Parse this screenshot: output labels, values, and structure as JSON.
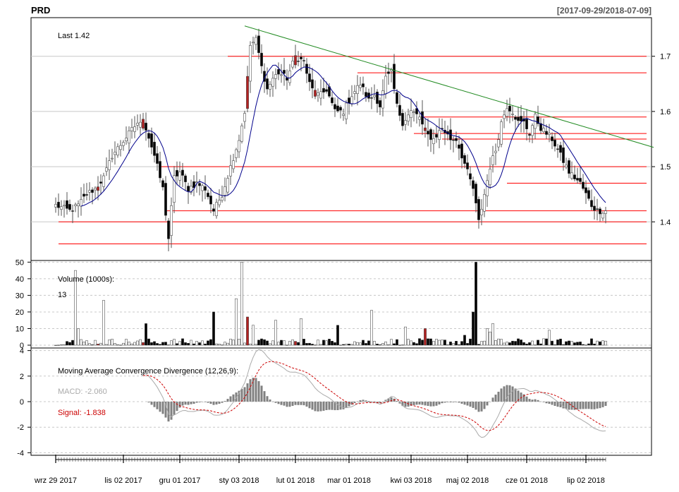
{
  "header": {
    "symbol": "PRD",
    "date_range": "[2017-09-29/2018-07-09]"
  },
  "price_panel": {
    "last_label": "Last 1.42",
    "y_ticks": [
      "1.7",
      "1.6",
      "1.5",
      "1.4"
    ],
    "y_tick_values": [
      1.7,
      1.6,
      1.5,
      1.4
    ],
    "ylim": [
      1.33,
      1.77
    ],
    "ma_color": "#00008b",
    "up_color": "#ffffff",
    "down_color": "#000000",
    "highlight_color": "#b22222",
    "support_color": "#ff0000",
    "trend_color": "#228b22"
  },
  "volume_panel": {
    "title": "Volume (1000s):",
    "last_value": "13",
    "y_ticks": [
      "50",
      "40",
      "30",
      "20",
      "10",
      "0"
    ],
    "y_tick_values": [
      50,
      40,
      30,
      20,
      10,
      0
    ],
    "ylim": [
      0,
      51
    ]
  },
  "macd_panel": {
    "title": "Moving Average Convergence Divergence (12,26,9):",
    "macd_label": "MACD: -2.060",
    "signal_label": "Signal: -1.838",
    "y_ticks": [
      "4",
      "2",
      "0",
      "-2",
      "-4"
    ],
    "y_tick_values": [
      4,
      2,
      0,
      -2,
      -4
    ],
    "ylim": [
      -4.2,
      4.2
    ],
    "macd_color": "#aaaaaa",
    "signal_color": "#cc0000",
    "hist_color": "#808080"
  },
  "x_axis": {
    "labels": [
      "wrz 29 2017",
      "lis 02 2017",
      "gru 01 2017",
      "sty 03 2018",
      "lut 01 2018",
      "mar 01 2018",
      "kwi 03 2018",
      "maj 02 2018",
      "cze 01 2018",
      "lip 02 2018"
    ],
    "label_indices": [
      0,
      24,
      44,
      65,
      85,
      104,
      126,
      146,
      167,
      188
    ]
  },
  "chart_data": {
    "type": "candlestick",
    "n_bars": 196,
    "close_anchors": [
      [
        0,
        1.43
      ],
      [
        5,
        1.42
      ],
      [
        8,
        1.43
      ],
      [
        11,
        1.45
      ],
      [
        14,
        1.46
      ],
      [
        17,
        1.48
      ],
      [
        20,
        1.52
      ],
      [
        23,
        1.54
      ],
      [
        26,
        1.56
      ],
      [
        29,
        1.58
      ],
      [
        32,
        1.57
      ],
      [
        35,
        1.52
      ],
      [
        38,
        1.46
      ],
      [
        40,
        1.37
      ],
      [
        42,
        1.48
      ],
      [
        44,
        1.49
      ],
      [
        47,
        1.46
      ],
      [
        50,
        1.47
      ],
      [
        53,
        1.46
      ],
      [
        56,
        1.42
      ],
      [
        59,
        1.45
      ],
      [
        62,
        1.5
      ],
      [
        65,
        1.55
      ],
      [
        67,
        1.6
      ],
      [
        69,
        1.72
      ],
      [
        71,
        1.73
      ],
      [
        73,
        1.68
      ],
      [
        75,
        1.64
      ],
      [
        77,
        1.66
      ],
      [
        79,
        1.67
      ],
      [
        82,
        1.66
      ],
      [
        85,
        1.7
      ],
      [
        88,
        1.69
      ],
      [
        90,
        1.65
      ],
      [
        92,
        1.63
      ],
      [
        94,
        1.63
      ],
      [
        96,
        1.64
      ],
      [
        99,
        1.6
      ],
      [
        102,
        1.6
      ],
      [
        105,
        1.63
      ],
      [
        108,
        1.65
      ],
      [
        111,
        1.62
      ],
      [
        113,
        1.63
      ],
      [
        115,
        1.61
      ],
      [
        117,
        1.66
      ],
      [
        119,
        1.67
      ],
      [
        121,
        1.61
      ],
      [
        123,
        1.58
      ],
      [
        126,
        1.6
      ],
      [
        129,
        1.59
      ],
      [
        131,
        1.56
      ],
      [
        134,
        1.55
      ],
      [
        137,
        1.57
      ],
      [
        140,
        1.55
      ],
      [
        142,
        1.55
      ],
      [
        144,
        1.52
      ],
      [
        146,
        1.49
      ],
      [
        148,
        1.46
      ],
      [
        150,
        1.4
      ],
      [
        152,
        1.45
      ],
      [
        154,
        1.5
      ],
      [
        156,
        1.53
      ],
      [
        158,
        1.58
      ],
      [
        160,
        1.61
      ],
      [
        162,
        1.6
      ],
      [
        164,
        1.58
      ],
      [
        166,
        1.58
      ],
      [
        168,
        1.56
      ],
      [
        170,
        1.59
      ],
      [
        172,
        1.57
      ],
      [
        174,
        1.56
      ],
      [
        176,
        1.55
      ],
      [
        178,
        1.53
      ],
      [
        180,
        1.51
      ],
      [
        182,
        1.49
      ],
      [
        184,
        1.48
      ],
      [
        186,
        1.47
      ],
      [
        188,
        1.45
      ],
      [
        190,
        1.43
      ],
      [
        192,
        1.42
      ],
      [
        195,
        1.42
      ]
    ],
    "support_levels": [
      {
        "value": 1.7,
        "from": 61
      },
      {
        "value": 1.67,
        "from": 107
      },
      {
        "value": 1.59,
        "from": 130
      },
      {
        "value": 1.56,
        "from": 127
      },
      {
        "value": 1.55,
        "from": 137
      },
      {
        "value": 1.5,
        "from": 37
      },
      {
        "value": 1.47,
        "from": 160
      },
      {
        "value": 1.42,
        "from": 39
      },
      {
        "value": 1.4,
        "from": 1
      },
      {
        "value": 1.36,
        "from": 1
      }
    ],
    "trendline": {
      "from": [
        67,
        1.755
      ],
      "to": [
        212,
        1.535
      ]
    },
    "volume_spikes": [
      [
        7,
        45
      ],
      [
        8,
        10
      ],
      [
        17,
        27
      ],
      [
        32,
        13
      ],
      [
        56,
        20
      ],
      [
        64,
        28
      ],
      [
        66,
        50
      ],
      [
        68,
        17
      ],
      [
        70,
        12
      ],
      [
        78,
        15
      ],
      [
        87,
        16
      ],
      [
        100,
        12
      ],
      [
        112,
        21
      ],
      [
        124,
        11
      ],
      [
        131,
        10
      ],
      [
        145,
        6
      ],
      [
        148,
        20
      ],
      [
        149,
        50
      ],
      [
        153,
        10
      ],
      [
        154,
        8
      ],
      [
        155,
        13
      ],
      [
        175,
        9
      ]
    ],
    "highlight_bars": [
      15,
      31,
      68,
      85,
      92,
      131
    ]
  }
}
